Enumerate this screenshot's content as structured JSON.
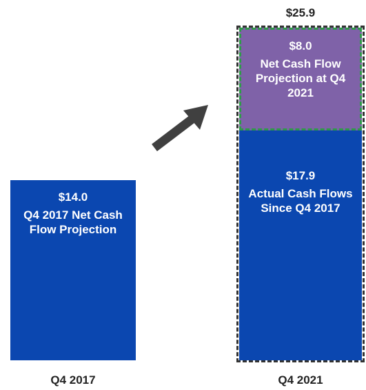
{
  "chart_data": {
    "type": "bar",
    "stacked": true,
    "categories": [
      "Q4 2017",
      "Q4 2021"
    ],
    "series": [
      {
        "color": "#0b47b0",
        "values": [
          14.0,
          17.9
        ],
        "value_labels": [
          "$14.0",
          "$17.9"
        ],
        "descriptions": [
          "Q4 2017 Net Cash Flow Projection",
          "Actual Cash Flows Since Q4 2017"
        ]
      },
      {
        "color": "#7f62a8",
        "values": [
          null,
          8.0
        ],
        "value_labels": [
          null,
          "$8.0"
        ],
        "descriptions": [
          null,
          "Net Cash Flow Projection at Q4 2021"
        ]
      }
    ],
    "totals": [
      null,
      25.9
    ],
    "total_labels": [
      null,
      "$25.9"
    ]
  }
}
